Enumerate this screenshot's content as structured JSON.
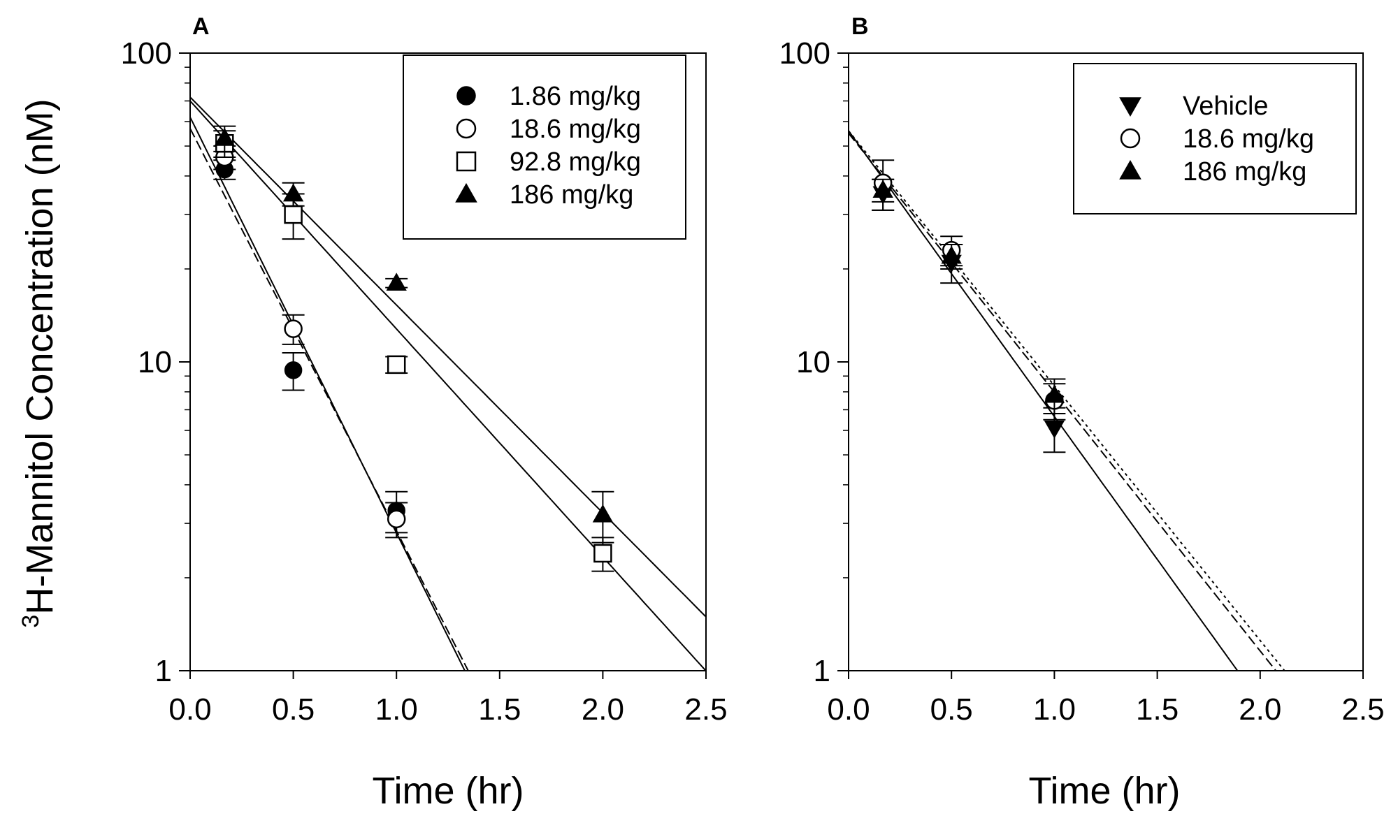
{
  "chart_data": [
    {
      "panel": "A",
      "type": "scatter",
      "title": "",
      "xlabel": "Time (hr)",
      "ylabel": "H-Mannitol Concentration (nM)",
      "ylabel_superscript": "3",
      "xlim": [
        0,
        2.5
      ],
      "ylim": [
        1,
        100
      ],
      "yscale": "log",
      "xticks": [
        "0.0",
        "0.5",
        "1.0",
        "1.5",
        "2.0",
        "2.5"
      ],
      "yticks": [
        "1",
        "10",
        "100"
      ],
      "legend": "top-right",
      "series": [
        {
          "name": "1.86 mg/kg",
          "marker": "filled-circle",
          "x": [
            0.167,
            0.5,
            1.0
          ],
          "y": [
            42,
            9.4,
            3.3
          ],
          "err": [
            3,
            1.3,
            0.5
          ],
          "fit": {
            "c0": 62,
            "k": 3.1,
            "dash": "solid"
          }
        },
        {
          "name": "18.6 mg/kg",
          "marker": "open-circle",
          "x": [
            0.167,
            0.5,
            1.0
          ],
          "y": [
            46,
            12.8,
            3.1
          ],
          "err": [
            4,
            1.4,
            0.4
          ],
          "fit": {
            "c0": 57,
            "k": 3.0,
            "dash": "dashed"
          }
        },
        {
          "name": "92.8 mg/kg",
          "marker": "open-square",
          "x": [
            0.167,
            0.5,
            1.0,
            2.0
          ],
          "y": [
            51,
            30,
            9.8,
            2.4
          ],
          "err": [
            5,
            5,
            0.6,
            0.3
          ],
          "fit": {
            "c0": 70,
            "k": 1.7,
            "dash": "solid"
          }
        },
        {
          "name": "186 mg/kg",
          "marker": "filled-triangle-up",
          "x": [
            0.167,
            0.5,
            1.0,
            2.0
          ],
          "y": [
            53,
            35,
            18,
            3.2
          ],
          "err": [
            5,
            3,
            0.6,
            0.6
          ],
          "fit": {
            "c0": 72,
            "k": 1.55,
            "dash": "solid"
          }
        }
      ]
    },
    {
      "panel": "B",
      "type": "scatter",
      "title": "",
      "xlabel": "Time (hr)",
      "ylabel": "",
      "xlim": [
        0,
        2.5
      ],
      "ylim": [
        1,
        100
      ],
      "yscale": "log",
      "xticks": [
        "0.0",
        "0.5",
        "1.0",
        "1.5",
        "2.0",
        "2.5"
      ],
      "yticks": [
        "1",
        "10",
        "100"
      ],
      "legend": "top-right",
      "series": [
        {
          "name": "Vehicle",
          "marker": "filled-triangle-down",
          "x": [
            0.167,
            0.5,
            1.0
          ],
          "y": [
            35,
            21,
            6.1
          ],
          "err": [
            4,
            3,
            1.0
          ],
          "fit": {
            "c0": 56,
            "k": 2.13,
            "dash": "solid"
          }
        },
        {
          "name": "18.6 mg/kg",
          "marker": "open-circle",
          "x": [
            0.167,
            0.5,
            1.0
          ],
          "y": [
            38,
            23,
            7.5
          ],
          "err": [
            7,
            2.5,
            1.0
          ],
          "fit": {
            "c0": 55,
            "k": 1.93,
            "dash": "dashed"
          }
        },
        {
          "name": "186 mg/kg",
          "marker": "filled-triangle-up",
          "x": [
            0.167,
            0.5,
            1.0
          ],
          "y": [
            36,
            22,
            7.8
          ],
          "err": [
            3,
            2,
            1.0
          ],
          "fit": {
            "c0": 56,
            "k": 1.9,
            "dash": "dotted"
          }
        }
      ]
    }
  ]
}
